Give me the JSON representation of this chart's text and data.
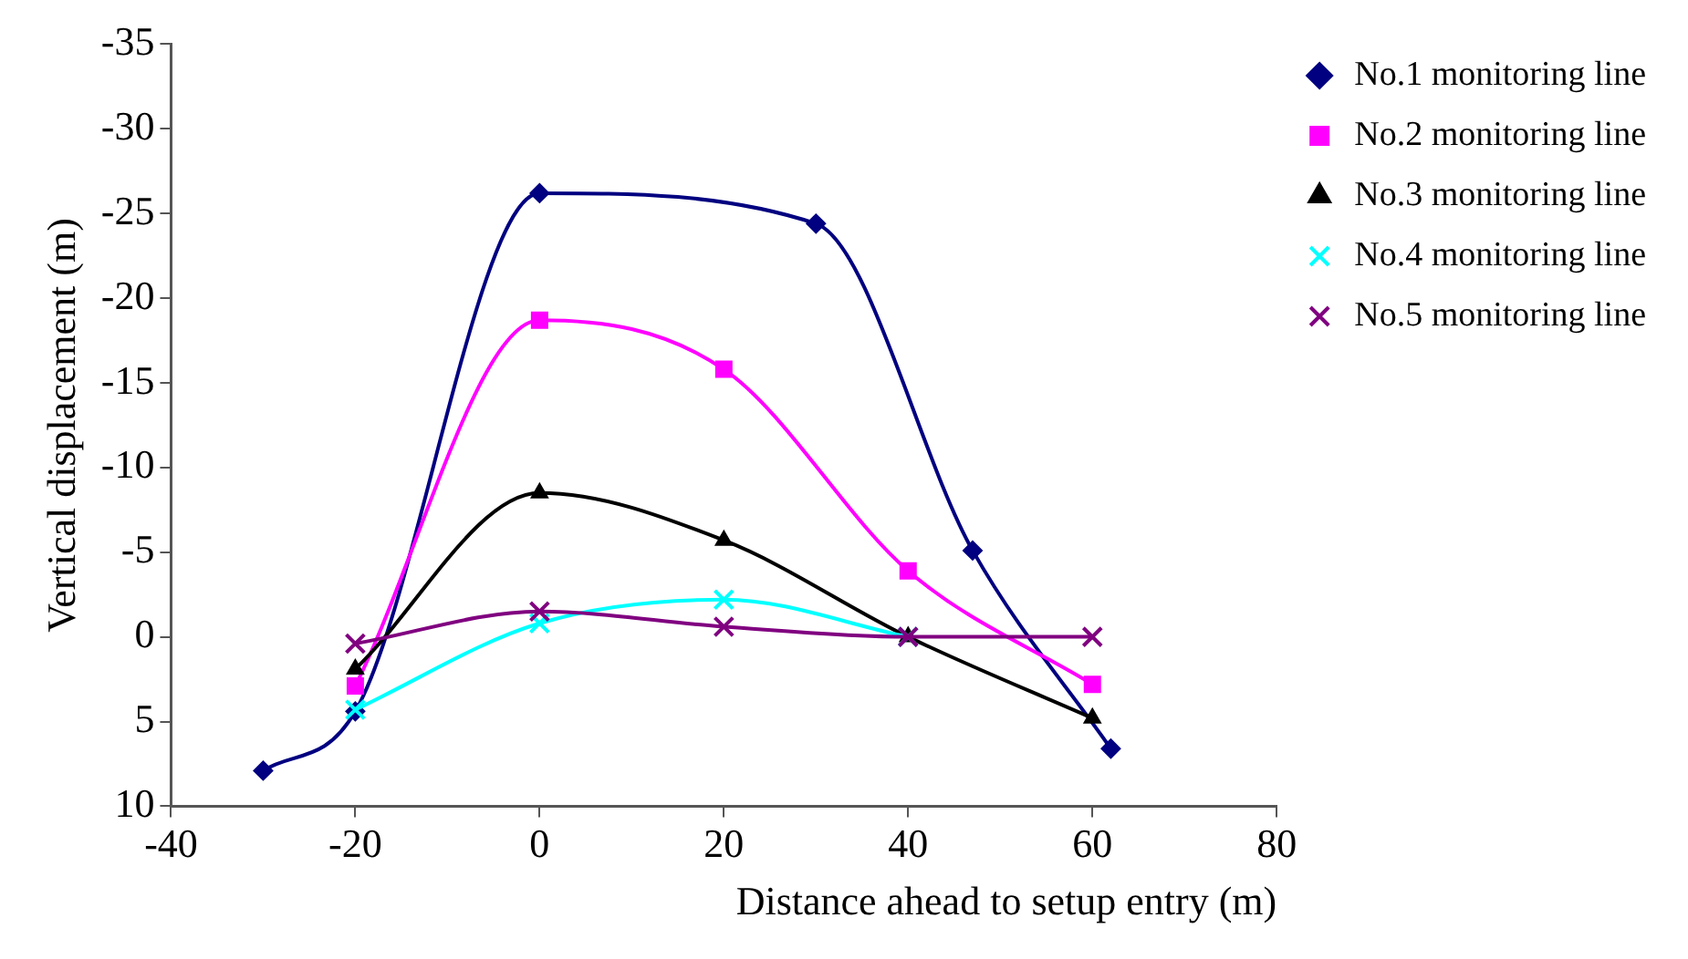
{
  "chart_data": {
    "type": "line",
    "xlabel": "Distance ahead to setup entry (m)",
    "ylabel": "Vertical displacement (m)",
    "xlim": [
      -40,
      80
    ],
    "xticks": [
      -40,
      -20,
      0,
      20,
      40,
      60,
      80
    ],
    "ylim": [
      10,
      -35
    ],
    "yticks": [
      -35,
      -30,
      -25,
      -20,
      -15,
      -10,
      -5,
      0,
      5,
      10
    ],
    "grid": false,
    "legend": "top right",
    "series": [
      {
        "name": "No.1 monitoring line",
        "color": "#000080",
        "marker": "diamond",
        "x": [
          -30,
          -20,
          0,
          30,
          47,
          62
        ],
        "values": [
          7.9,
          4.4,
          -26.2,
          -24.4,
          -5.1,
          6.6
        ]
      },
      {
        "name": "No.2 monitoring line",
        "color": "#ff00ff",
        "marker": "square",
        "x": [
          -20,
          0,
          20,
          40,
          60
        ],
        "values": [
          2.9,
          -18.7,
          -15.8,
          -3.9,
          2.8
        ]
      },
      {
        "name": "No.3 monitoring line",
        "color": "#000000",
        "marker": "triangle",
        "x": [
          -20,
          0,
          20,
          40,
          60
        ],
        "values": [
          1.9,
          -8.5,
          -5.7,
          0,
          4.8
        ]
      },
      {
        "name": "No.4 monitoring line",
        "color": "#00ffff",
        "marker": "cross",
        "x": [
          -20,
          0,
          20,
          40
        ],
        "values": [
          4.3,
          -0.8,
          -2.2,
          0
        ]
      },
      {
        "name": "No.5 monitoring line",
        "color": "#800080",
        "marker": "cross",
        "x": [
          -20,
          0,
          20,
          40,
          60
        ],
        "values": [
          0.4,
          -1.5,
          -0.6,
          0,
          0
        ]
      }
    ]
  }
}
